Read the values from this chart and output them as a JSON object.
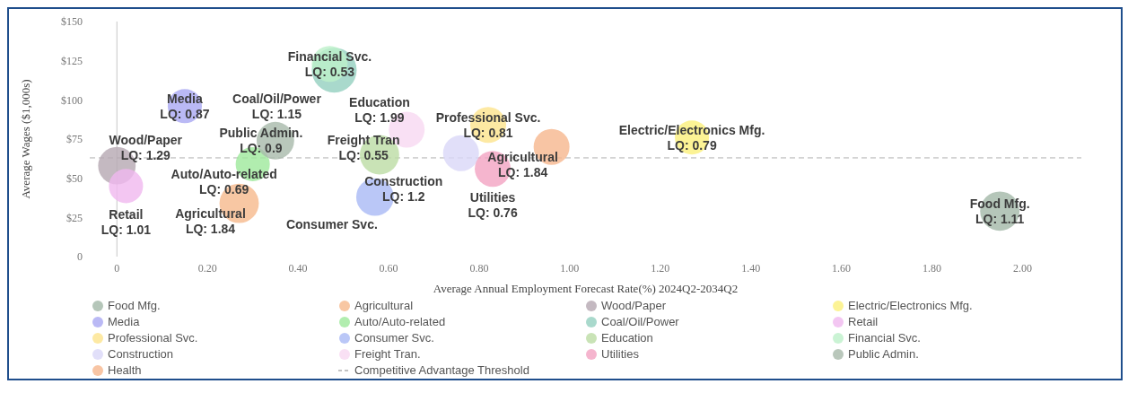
{
  "chart_data": {
    "type": "bubble",
    "xlabel": "Average Annual Employment Forecast Rate(%) 2024Q2-2034Q2",
    "ylabel": "Average Wages ($1,000s)",
    "xlim": [
      -0.06,
      2.13
    ],
    "ylim": [
      0,
      150
    ],
    "xticks": [
      {
        "value": 0,
        "label": "0"
      },
      {
        "value": 0.2,
        "label": "0.20"
      },
      {
        "value": 0.4,
        "label": "0.40"
      },
      {
        "value": 0.6,
        "label": "0.60"
      },
      {
        "value": 0.8,
        "label": "0.80"
      },
      {
        "value": 1,
        "label": "1.00"
      },
      {
        "value": 1.2,
        "label": "1.20"
      },
      {
        "value": 1.4,
        "label": "1.40"
      },
      {
        "value": 1.6,
        "label": "1.60"
      },
      {
        "value": 1.8,
        "label": "1.80"
      },
      {
        "value": 2,
        "label": "2.00"
      }
    ],
    "yticks": [
      0,
      {
        "value": 25,
        "label": "$25"
      },
      {
        "value": 50,
        "label": "$50"
      },
      {
        "value": 75,
        "label": "$75"
      },
      {
        "value": 100,
        "label": "$100"
      },
      {
        "value": 125,
        "label": "$125"
      },
      {
        "value": 150,
        "label": "$150"
      }
    ],
    "legend": "bottom",
    "series": [
      {
        "name": "Food Mfg.",
        "color": "#a3b8a8",
        "x": [
          1.95
        ],
        "values": [
          29
        ],
        "sizes": [
          0.77
        ]
      },
      {
        "name": "Agricultural",
        "color": "#f6b98c",
        "x": [
          0.27
        ],
        "values": [
          34
        ],
        "sizes": [
          0.77
        ]
      },
      {
        "name": "Wood/Paper",
        "color": "#b5a7b2",
        "x": [
          0
        ],
        "values": [
          58
        ],
        "sizes": [
          0.7
        ]
      },
      {
        "name": "Electric/Electronics Mfg.",
        "color": "#fbf07a",
        "x": [
          1.27
        ],
        "values": [
          76
        ],
        "sizes": [
          0.58
        ]
      },
      {
        "name": "Media",
        "color": "#a9a8f2",
        "x": [
          0.15
        ],
        "values": [
          96
        ],
        "sizes": [
          0.58
        ]
      },
      {
        "name": "Auto/Auto-related",
        "color": "#9ee89b",
        "x": [
          0.3
        ],
        "values": [
          59
        ],
        "sizes": [
          0.58
        ]
      },
      {
        "name": "Coal/Oil/Power",
        "color": "#93cfbf",
        "x": [
          0.48
        ],
        "values": [
          119
        ],
        "sizes": [
          1
        ]
      },
      {
        "name": "Retail",
        "color": "#f0b8ef",
        "x": [
          0.02
        ],
        "values": [
          45
        ],
        "sizes": [
          0.58
        ]
      },
      {
        "name": "Professional Svc.",
        "color": "#fde38c",
        "x": [
          0.82
        ],
        "values": [
          84
        ],
        "sizes": [
          0.64
        ]
      },
      {
        "name": "Consumer Svc.",
        "color": "#a9b9f5",
        "x": [
          0.57
        ],
        "values": [
          38
        ],
        "sizes": [
          0.7
        ]
      },
      {
        "name": "Education",
        "color": "#bcdca4",
        "x": [
          0.58
        ],
        "values": [
          65
        ],
        "sizes": [
          0.77
        ]
      },
      {
        "name": "Financial Svc.",
        "color": "#bdf0c9",
        "x": [
          0.47
        ],
        "values": [
          123
        ],
        "sizes": [
          0.64
        ]
      },
      {
        "name": "Construction",
        "color": "#dad7f7",
        "x": [
          0.76
        ],
        "values": [
          66
        ],
        "sizes": [
          0.64
        ]
      },
      {
        "name": "Freight Tran.",
        "color": "#f8d8f1",
        "x": [
          0.64
        ],
        "values": [
          81
        ],
        "sizes": [
          0.64
        ]
      },
      {
        "name": "Utilities",
        "color": "#f2a3c2",
        "x": [
          0.83
        ],
        "values": [
          56
        ],
        "sizes": [
          0.64
        ]
      },
      {
        "name": "Public Admin.",
        "color": "#a8b9aa",
        "x": [
          0.35
        ],
        "values": [
          74
        ],
        "sizes": [
          0.7
        ]
      },
      {
        "name": "Health",
        "color": "#f6b78d",
        "x": [
          0.96
        ],
        "values": [
          70
        ],
        "sizes": [
          0.64
        ]
      }
    ],
    "ref_lines": [
      {
        "axis": "x",
        "value": 0,
        "color": "#c8c8c8"
      },
      {
        "axis": "y",
        "value": 63,
        "label": "Competitive Advantage Threshold",
        "color": "#b0b0b0",
        "line_style": "dashed"
      }
    ],
    "annotations": [
      {
        "text": "Financial Svc.\nLQ: 0.53",
        "x": 0.47,
        "y": 123
      },
      {
        "text": "Coal/Oil/Power\nLQ: 1.15",
        "x": 0.48,
        "y": 119
      },
      {
        "text": "Media\nLQ: 0.87",
        "x": 0.15,
        "y": 96
      },
      {
        "text": "Public Admin.\nLQ: 0.9",
        "x": 0.35,
        "y": 74
      },
      {
        "text": "Freight Tran\nLQ: 0.55",
        "x": 0.64,
        "y": 81
      },
      {
        "text": "Professional Svc.\nLQ: 0.81",
        "x": 0.82,
        "y": 84
      },
      {
        "text": "Construction\nLQ: 1.2",
        "x": 0.76,
        "y": 66
      },
      {
        "text": "Electric/Electronics Mfg.\nLQ: 0.79",
        "x": 1.27,
        "y": 76
      },
      {
        "text": "Education\nLQ: 1.99",
        "x": 0.58,
        "y": 65
      },
      {
        "text": "Wood/Paper\nLQ: 1.29",
        "x": 0,
        "y": 58
      },
      {
        "text": "Auto/Auto-related\nLQ: 0.69",
        "x": 0.3,
        "y": 59
      },
      {
        "text": "Utilities\nLQ: 0.76",
        "x": 0.83,
        "y": 56
      },
      {
        "text": "Agricultural\nLQ: 1.84",
        "x": 0.96,
        "y": 70
      },
      {
        "text": "Retail\nLQ: 1.01",
        "x": 0.02,
        "y": 45
      },
      {
        "text": "Agricultural\nLQ: 1.84",
        "x": 0.27,
        "y": 34
      },
      {
        "text": "Consumer Svc.",
        "x": 0.57,
        "y": 38
      },
      {
        "text": "Food Mfg.\nLQ: 1.11",
        "x": 1.95,
        "y": 29
      }
    ]
  }
}
